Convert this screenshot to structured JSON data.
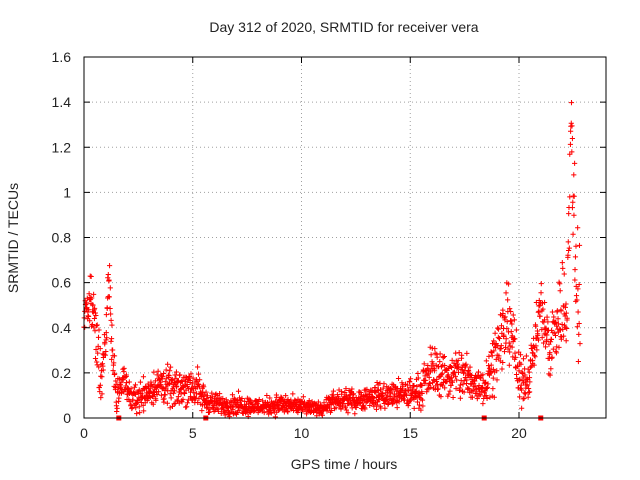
{
  "chart_data": {
    "type": "scatter",
    "title": "Day 312 of 2020, SRMTID for receiver vera",
    "xlabel": "GPS time / hours",
    "ylabel": "SRMTID / TECUs",
    "xlim": [
      0,
      24
    ],
    "ylim": [
      0,
      1.6
    ],
    "xticks": [
      0,
      5,
      10,
      15,
      20
    ],
    "xtick_labels": [
      "0",
      "5",
      "10",
      "15",
      "20"
    ],
    "yticks": [
      0,
      0.2,
      0.4,
      0.6,
      0.8,
      1.0,
      1.2,
      1.4,
      1.6
    ],
    "ytick_labels": [
      "0",
      "0.2",
      "0.4",
      "0.6",
      "0.8",
      "1",
      "1.2",
      "1.4",
      "1.6"
    ],
    "grid": true,
    "marker": "plus",
    "series": [
      {
        "name": "SRMTID",
        "color": "#ff0000",
        "profile": [
          [
            0.0,
            0.45,
            0.1
          ],
          [
            0.3,
            0.55,
            0.12
          ],
          [
            0.6,
            0.3,
            0.2
          ],
          [
            0.8,
            0.2,
            0.15
          ],
          [
            1.0,
            0.3,
            0.1
          ],
          [
            1.15,
            0.65,
            0.12
          ],
          [
            1.3,
            0.3,
            0.15
          ],
          [
            1.5,
            0.08,
            0.08
          ],
          [
            1.8,
            0.18,
            0.06
          ],
          [
            2.2,
            0.08,
            0.06
          ],
          [
            2.6,
            0.1,
            0.08
          ],
          [
            3.0,
            0.12,
            0.07
          ],
          [
            3.6,
            0.15,
            0.1
          ],
          [
            4.2,
            0.12,
            0.08
          ],
          [
            4.8,
            0.15,
            0.1
          ],
          [
            5.2,
            0.12,
            0.1
          ],
          [
            5.6,
            0.08,
            0.06
          ],
          [
            6.0,
            0.06,
            0.05
          ],
          [
            7.0,
            0.06,
            0.05
          ],
          [
            8.0,
            0.05,
            0.04
          ],
          [
            9.0,
            0.06,
            0.05
          ],
          [
            10.0,
            0.05,
            0.04
          ],
          [
            10.8,
            0.04,
            0.03
          ],
          [
            11.5,
            0.07,
            0.05
          ],
          [
            12.5,
            0.08,
            0.05
          ],
          [
            13.5,
            0.1,
            0.06
          ],
          [
            14.5,
            0.1,
            0.07
          ],
          [
            15.5,
            0.12,
            0.08
          ],
          [
            16.0,
            0.22,
            0.12
          ],
          [
            16.8,
            0.18,
            0.1
          ],
          [
            17.4,
            0.2,
            0.15
          ],
          [
            17.8,
            0.15,
            0.1
          ],
          [
            18.4,
            0.15,
            0.1
          ],
          [
            19.0,
            0.3,
            0.15
          ],
          [
            19.6,
            0.45,
            0.2
          ],
          [
            20.0,
            0.15,
            0.12
          ],
          [
            20.5,
            0.2,
            0.1
          ],
          [
            21.0,
            0.5,
            0.12
          ],
          [
            21.4,
            0.3,
            0.15
          ],
          [
            21.8,
            0.45,
            0.2
          ],
          [
            22.2,
            0.5,
            0.3
          ],
          [
            22.4,
            1.3,
            0.3
          ],
          [
            22.6,
            0.6,
            0.4
          ],
          [
            22.8,
            0.6,
            0.5
          ]
        ],
        "point_count": 1700,
        "floor_markers_x": [
          1.6,
          5.6,
          18.4,
          21.0
        ]
      }
    ]
  }
}
